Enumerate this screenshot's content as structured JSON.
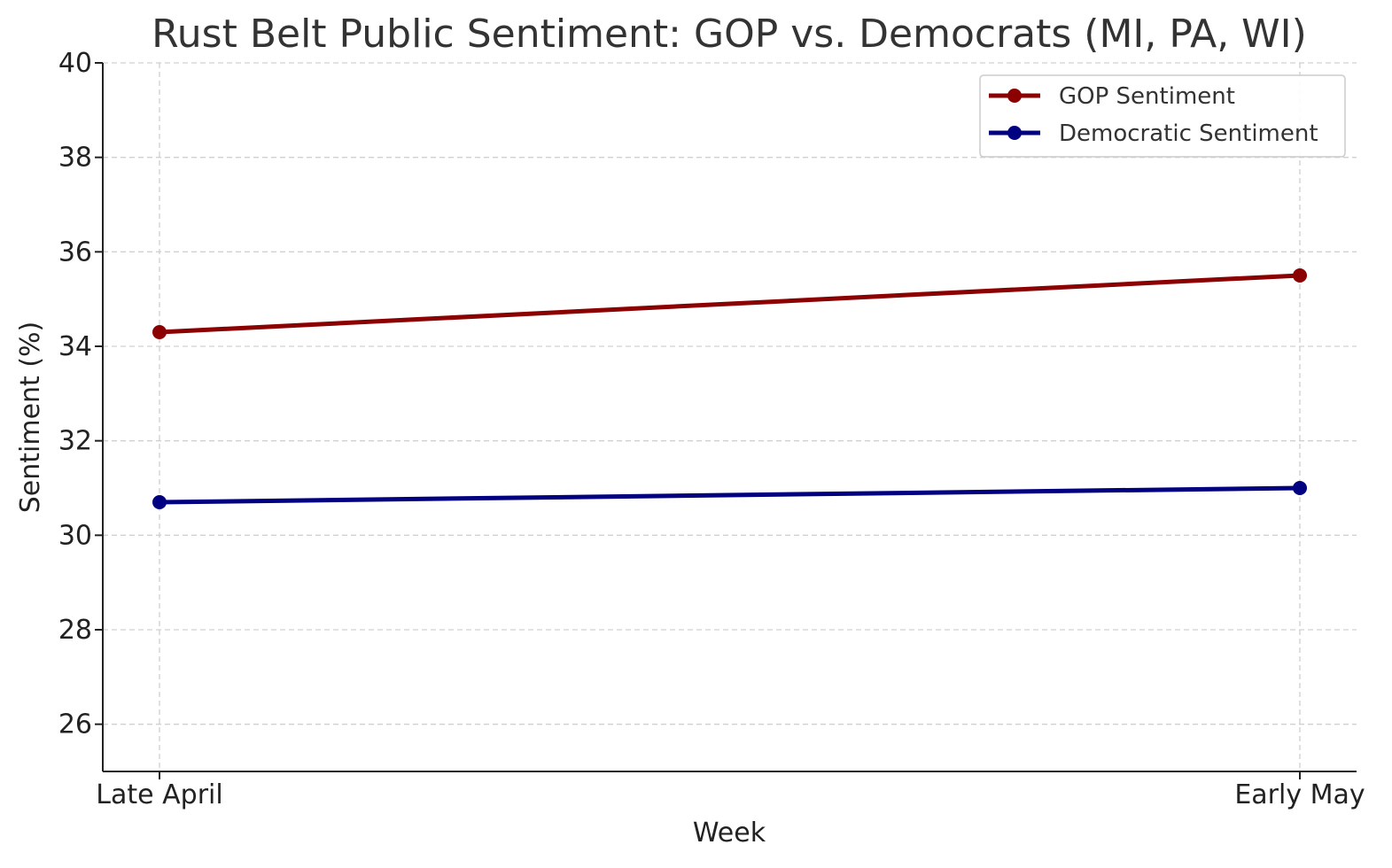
{
  "chart_data": {
    "type": "line",
    "title": "Rust Belt Public Sentiment: GOP vs. Democrats (MI, PA, WI)",
    "xlabel": "Week",
    "ylabel": "Sentiment (%)",
    "categories": [
      "Late April",
      "Early May"
    ],
    "ylim": [
      25,
      40
    ],
    "yticks": [
      26,
      28,
      30,
      32,
      34,
      36,
      38,
      40
    ],
    "grid": true,
    "legend_position": "top-right",
    "series": [
      {
        "name": "GOP Sentiment",
        "values": [
          34.3,
          35.5
        ],
        "color": "#8b0000"
      },
      {
        "name": "Democratic Sentiment",
        "values": [
          30.7,
          31.0
        ],
        "color": "#000080"
      }
    ]
  }
}
